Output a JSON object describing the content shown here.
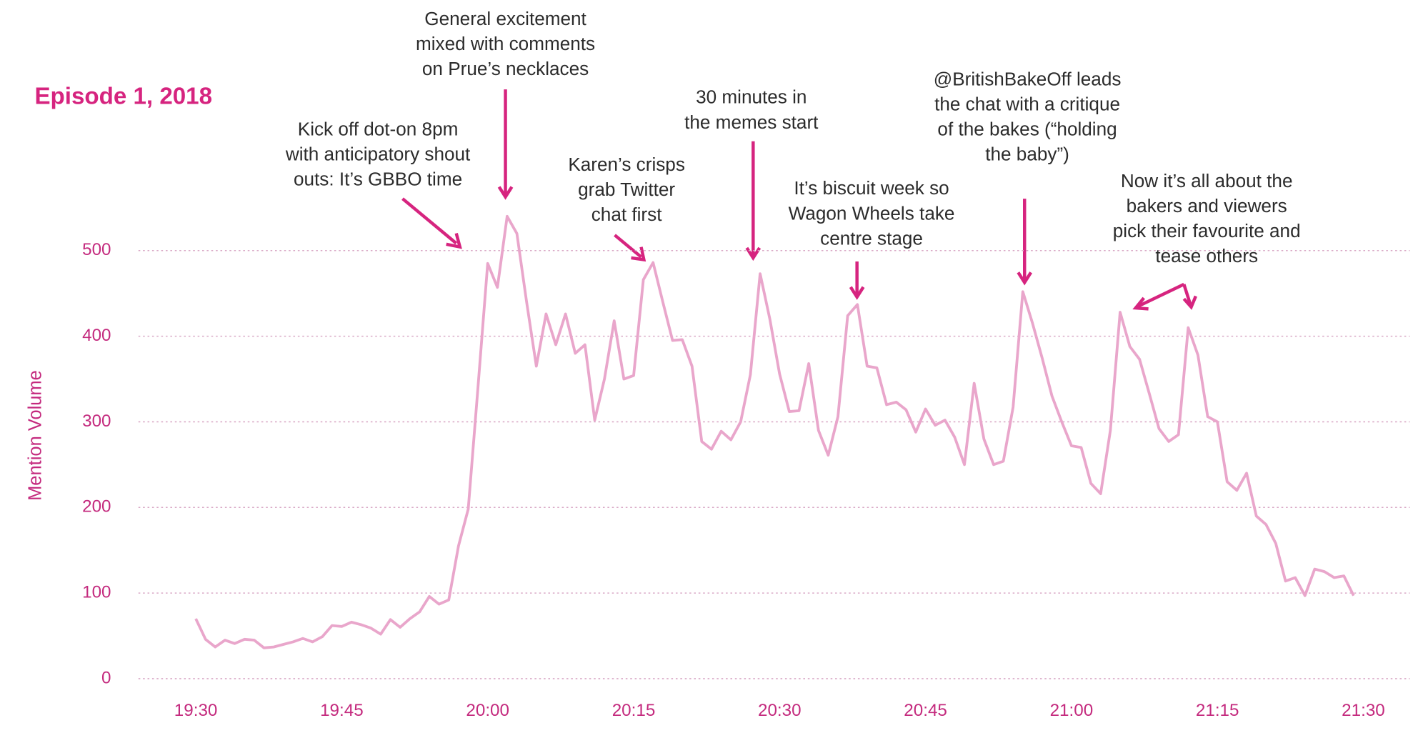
{
  "chart_data": {
    "type": "line",
    "title": "Episode 1, 2018",
    "y_label": "Mention Volume",
    "color": "#e9a6cb",
    "grid": true,
    "xlim": [
      "19:30",
      "21:30"
    ],
    "xticks": [
      "19:30",
      "19:45",
      "20:00",
      "20:15",
      "20:30",
      "20:45",
      "21:00",
      "21:15",
      "21:30"
    ],
    "ylim": [
      0,
      540
    ],
    "yticks": [
      0,
      100,
      200,
      300,
      400,
      500
    ],
    "x": [
      "19:30",
      "19:31",
      "19:32",
      "19:33",
      "19:34",
      "19:35",
      "19:36",
      "19:37",
      "19:38",
      "19:39",
      "19:40",
      "19:41",
      "19:42",
      "19:43",
      "19:44",
      "19:45",
      "19:46",
      "19:47",
      "19:48",
      "19:49",
      "19:50",
      "19:51",
      "19:52",
      "19:53",
      "19:54",
      "19:55",
      "19:56",
      "19:57",
      "19:58",
      "19:59",
      "20:00",
      "20:01",
      "20:02",
      "20:03",
      "20:04",
      "20:05",
      "20:06",
      "20:07",
      "20:08",
      "20:09",
      "20:10",
      "20:11",
      "20:12",
      "20:13",
      "20:14",
      "20:15",
      "20:16",
      "20:17",
      "20:18",
      "20:19",
      "20:20",
      "20:21",
      "20:22",
      "20:23",
      "20:24",
      "20:25",
      "20:26",
      "20:27",
      "20:28",
      "20:29",
      "20:30",
      "20:31",
      "20:32",
      "20:33",
      "20:34",
      "20:35",
      "20:36",
      "20:37",
      "20:38",
      "20:39",
      "20:40",
      "20:41",
      "20:42",
      "20:43",
      "20:44",
      "20:45",
      "20:46",
      "20:47",
      "20:48",
      "20:49",
      "20:50",
      "20:51",
      "20:52",
      "20:53",
      "20:54",
      "20:55",
      "20:56",
      "20:57",
      "20:58",
      "20:59",
      "21:00",
      "21:01",
      "21:02",
      "21:03",
      "21:04",
      "21:05",
      "21:06",
      "21:07",
      "21:08",
      "21:09",
      "21:10",
      "21:11",
      "21:12",
      "21:13",
      "21:14",
      "21:15",
      "21:16",
      "21:17",
      "21:18",
      "21:19",
      "21:20",
      "21:21",
      "21:22",
      "21:23",
      "21:24",
      "21:25",
      "21:26",
      "21:27",
      "21:28",
      "21:29"
    ],
    "series": [
      {
        "name": "Mention Volume",
        "color": "#e9a6cb",
        "values": [
          70,
          46,
          37,
          45,
          41,
          46,
          45,
          36,
          37,
          40,
          43,
          47,
          43,
          49,
          62,
          61,
          66,
          63,
          59,
          52,
          69,
          60,
          70,
          78,
          96,
          87,
          92,
          155,
          198,
          340,
          485,
          457,
          540,
          520,
          440,
          365,
          426,
          390,
          426,
          380,
          390,
          302,
          350,
          418,
          350,
          354,
          466,
          486,
          440,
          395,
          396,
          365,
          277,
          268,
          289,
          279,
          300,
          355,
          473,
          420,
          356,
          312,
          313,
          368,
          290,
          261,
          306,
          424,
          437,
          365,
          363,
          320,
          323,
          314,
          288,
          315,
          296,
          302,
          282,
          250,
          345,
          280,
          250,
          254,
          317,
          452,
          415,
          374,
          330,
          300,
          272,
          270,
          228,
          216,
          290,
          428,
          388,
          373,
          333,
          292,
          277,
          285,
          410,
          378,
          306,
          300,
          230,
          220,
          240,
          190,
          180,
          158,
          114,
          118,
          97,
          128,
          125,
          118,
          120,
          97
        ]
      }
    ],
    "annotations": [
      [
        "Kick off dot-on 8pm",
        "with anticipatory shout",
        "outs: It’s GBBO time"
      ],
      [
        "General excitement",
        "mixed with comments",
        "on Prue’s necklaces"
      ],
      [
        "Karen’s crisps",
        "grab Twitter",
        "chat first"
      ],
      [
        "30 minutes in",
        "the memes start"
      ],
      [
        "It’s biscuit week so",
        "Wagon Wheels take",
        "centre stage"
      ],
      [
        "@BritishBakeOff leads",
        "the chat with a critique",
        "of the bakes (“holding",
        "the baby”)"
      ],
      [
        "Now it’s all about the",
        "bakers and viewers",
        "pick their favourite and",
        "tease others"
      ]
    ]
  }
}
